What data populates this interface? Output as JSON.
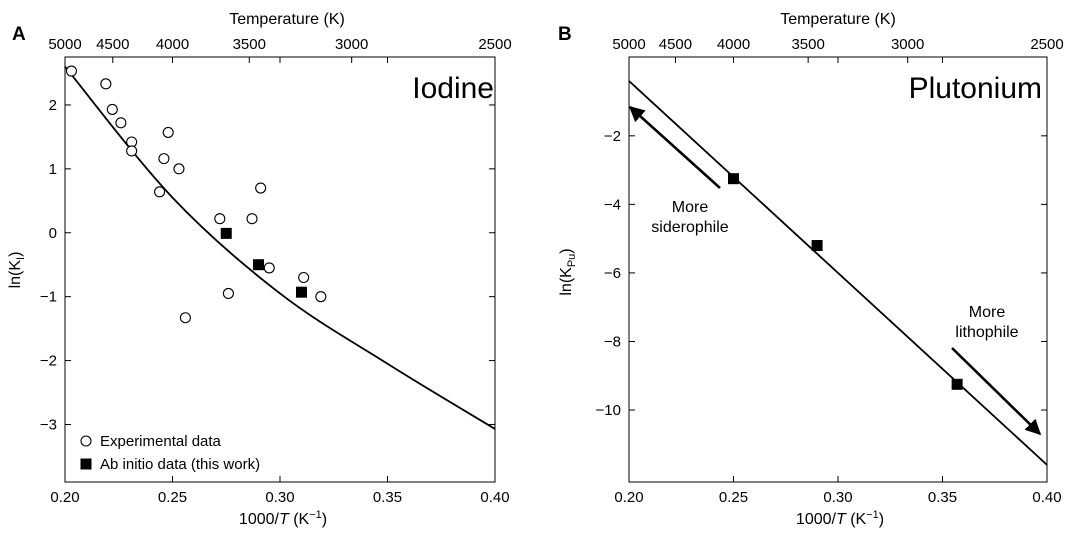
{
  "chart_data": [
    {
      "type": "scatter",
      "panel_label": "A",
      "title": "Iodine",
      "xlabel_prefix": "1000/",
      "xlabel_var": "T",
      "xlabel_unit": " (K",
      "xlabel_sup": "−1",
      "xlabel_close": ")",
      "ylabel_main": "ln(K",
      "ylabel_sub": "I",
      "ylabel_close": ")",
      "top_axis_label": "Temperature (K)",
      "xlim": [
        0.2,
        0.4
      ],
      "ylim": [
        -3.9,
        2.75
      ],
      "x_ticks": [
        0.2,
        0.25,
        0.3,
        0.35,
        0.4
      ],
      "x_tick_labels": [
        "0.20",
        "0.25",
        "0.30",
        "0.35",
        "0.40"
      ],
      "y_ticks": [
        -3,
        -2,
        -1,
        0,
        1,
        2
      ],
      "y_tick_labels": [
        "−3",
        "−2",
        "−1",
        "0",
        "1",
        "2"
      ],
      "top_ticks": [
        5000,
        4500,
        4000,
        3500,
        3000,
        2500
      ],
      "top_tick_labels": [
        "5000",
        "4500",
        "4000",
        "3500",
        "3000",
        "2500"
      ],
      "series": [
        {
          "name": "Experimental data",
          "marker": "open-circle",
          "points": [
            [
              0.203,
              2.53
            ],
            [
              0.219,
              2.33
            ],
            [
              0.222,
              1.93
            ],
            [
              0.226,
              1.72
            ],
            [
              0.231,
              1.42
            ],
            [
              0.231,
              1.28
            ],
            [
              0.246,
              1.16
            ],
            [
              0.248,
              1.57
            ],
            [
              0.253,
              1.0
            ],
            [
              0.244,
              0.64
            ],
            [
              0.272,
              0.22
            ],
            [
              0.287,
              0.22
            ],
            [
              0.291,
              0.7
            ],
            [
              0.295,
              -0.55
            ],
            [
              0.276,
              -0.95
            ],
            [
              0.256,
              -1.33
            ],
            [
              0.311,
              -0.7
            ],
            [
              0.319,
              -1.0
            ]
          ]
        },
        {
          "name": "Ab initio data (this work)",
          "marker": "filled-square",
          "points": [
            [
              0.275,
              -0.01
            ],
            [
              0.29,
              -0.5
            ],
            [
              0.31,
              -0.93
            ]
          ]
        },
        {
          "name": "",
          "marker": "line",
          "points": [
            [
              0.2,
              2.6
            ],
            [
              0.25,
              0.55
            ],
            [
              0.3,
              -0.95
            ],
            [
              0.35,
              -2.05
            ],
            [
              0.4,
              -3.07
            ]
          ]
        }
      ]
    },
    {
      "type": "line",
      "panel_label": "B",
      "title": "Plutonium",
      "xlabel_prefix": "1000/",
      "xlabel_var": "T",
      "xlabel_unit": " (K",
      "xlabel_sup": "−1",
      "xlabel_close": ")",
      "ylabel_main": "ln(K",
      "ylabel_sub": "Pu",
      "ylabel_close": ")",
      "top_axis_label": "Temperature (K)",
      "xlim": [
        0.2,
        0.4
      ],
      "ylim": [
        -12.1,
        0.3
      ],
      "x_ticks": [
        0.2,
        0.25,
        0.3,
        0.35,
        0.4
      ],
      "x_tick_labels": [
        "0.20",
        "0.25",
        "0.30",
        "0.35",
        "0.40"
      ],
      "y_ticks": [
        -10,
        -8,
        -6,
        -4,
        -2
      ],
      "y_tick_labels": [
        "−10",
        "−8",
        "−6",
        "−4",
        "−2"
      ],
      "top_ticks": [
        5000,
        4500,
        4000,
        3500,
        3000,
        2500
      ],
      "top_tick_labels": [
        "5000",
        "4500",
        "4000",
        "3500",
        "3000",
        "2500"
      ],
      "series": [
        {
          "name": "",
          "marker": "filled-square",
          "points": [
            [
              0.25,
              -3.25
            ],
            [
              0.29,
              -5.2
            ],
            [
              0.357,
              -9.25
            ]
          ]
        },
        {
          "name": "",
          "marker": "line",
          "points": [
            [
              0.2,
              -0.4
            ],
            [
              0.4,
              -11.6
            ]
          ]
        }
      ],
      "annotations": [
        {
          "lines": [
            "More",
            "siderophile"
          ]
        },
        {
          "lines": [
            "More",
            "lithophile"
          ]
        }
      ]
    }
  ]
}
